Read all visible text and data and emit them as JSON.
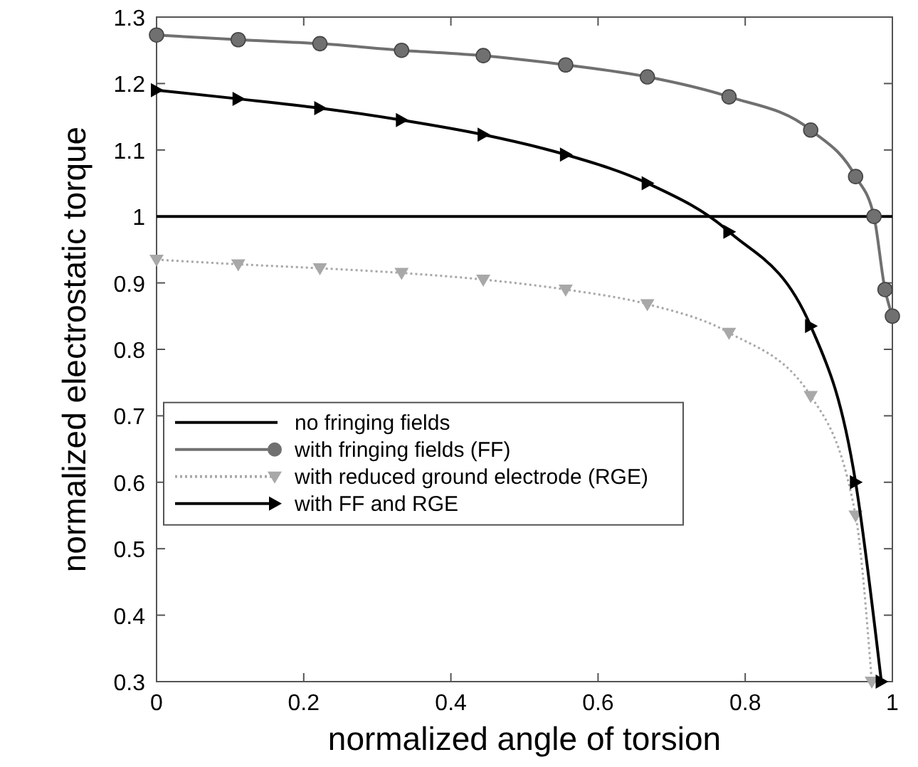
{
  "chart_data": {
    "type": "line",
    "xlabel": "normalized angle of torsion",
    "ylabel": "normalized electrostatic torque",
    "xlim": [
      0,
      1
    ],
    "ylim": [
      0.3,
      1.3
    ],
    "xticks": [
      0,
      0.2,
      0.4,
      0.6,
      0.8,
      1
    ],
    "yticks": [
      0.3,
      0.4,
      0.5,
      0.6,
      0.7,
      0.8,
      0.9,
      1,
      1.1,
      1.2,
      1.3
    ],
    "legend": "left",
    "grid": false,
    "series": [
      {
        "name": "no fringing fields",
        "color": "#000000",
        "marker": "none",
        "line_style": "solid",
        "x": [
          0,
          1
        ],
        "values": [
          1,
          1
        ]
      },
      {
        "name": "with fringing fields (FF)",
        "color": "#707070",
        "marker": "circle",
        "line_style": "solid",
        "x": [
          0,
          0.111,
          0.222,
          0.333,
          0.444,
          0.556,
          0.667,
          0.778,
          0.889,
          0.95,
          0.975,
          0.99,
          1
        ],
        "values": [
          1.273,
          1.266,
          1.26,
          1.25,
          1.242,
          1.228,
          1.21,
          1.18,
          1.13,
          1.06,
          1.0,
          0.89,
          0.85
        ]
      },
      {
        "name": "with reduced ground electrode (RGE)",
        "color": "#a8a8a8",
        "marker": "triangle",
        "line_style": "dotted",
        "x": [
          0,
          0.111,
          0.222,
          0.333,
          0.444,
          0.556,
          0.667,
          0.778,
          0.889,
          0.95,
          0.972
        ],
        "values": [
          0.935,
          0.928,
          0.922,
          0.915,
          0.905,
          0.89,
          0.868,
          0.825,
          0.73,
          0.55,
          0.3
        ]
      },
      {
        "name": "with FF and RGE",
        "color": "#000000",
        "marker": "triangle-right",
        "line_style": "solid",
        "x": [
          0,
          0.111,
          0.222,
          0.333,
          0.444,
          0.556,
          0.667,
          0.778,
          0.889,
          0.95,
          0.985
        ],
        "values": [
          1.19,
          1.177,
          1.163,
          1.145,
          1.123,
          1.093,
          1.05,
          0.977,
          0.835,
          0.6,
          0.3
        ]
      }
    ]
  }
}
